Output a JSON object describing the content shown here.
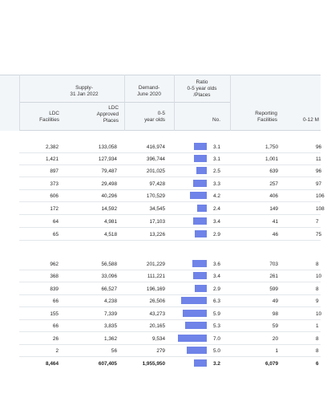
{
  "headers": {
    "supply": "Supply-\n31 Jan 2022",
    "demand": "Demand-\nJune 2020",
    "ratio": "Ratio\n0-5 year olds\n/Places",
    "ldc_facilities": "LDC\nFacilities",
    "ldc_places": "LDC\nApproved\nPlaces",
    "age_0_5": "0-5\nyear olds",
    "no": "No.",
    "reporting": "Reporting\nFacilities",
    "months": "0-12 M"
  },
  "accent_color": "#6f83e8",
  "rows": [
    {
      "facilities": "2,382",
      "places": "133,058",
      "age": "416,974",
      "ratio": "3.1",
      "ratio_value": 3.1,
      "reporting": "1,750",
      "months": "96"
    },
    {
      "facilities": "1,421",
      "places": "127,934",
      "age": "396,744",
      "ratio": "3.1",
      "ratio_value": 3.1,
      "reporting": "1,001",
      "months": "11"
    },
    {
      "facilities": "897",
      "places": "79,487",
      "age": "201,025",
      "ratio": "2.5",
      "ratio_value": 2.5,
      "reporting": "639",
      "months": "96"
    },
    {
      "facilities": "373",
      "places": "29,498",
      "age": "97,428",
      "ratio": "3.3",
      "ratio_value": 3.3,
      "reporting": "257",
      "months": "97"
    },
    {
      "facilities": "606",
      "places": "40,296",
      "age": "170,529",
      "ratio": "4.2",
      "ratio_value": 4.2,
      "reporting": "406",
      "months": "106"
    },
    {
      "facilities": "172",
      "places": "14,592",
      "age": "34,545",
      "ratio": "2.4",
      "ratio_value": 2.4,
      "reporting": "149",
      "months": "108"
    },
    {
      "facilities": "64",
      "places": "4,981",
      "age": "17,103",
      "ratio": "3.4",
      "ratio_value": 3.4,
      "reporting": "41",
      "months": "7"
    },
    {
      "facilities": "65",
      "places": "4,518",
      "age": "13,226",
      "ratio": "2.9",
      "ratio_value": 2.9,
      "reporting": "46",
      "months": "75"
    },
    {
      "facilities": "962",
      "places": "56,588",
      "age": "201,229",
      "ratio": "3.6",
      "ratio_value": 3.6,
      "reporting": "703",
      "months": "8"
    },
    {
      "facilities": "368",
      "places": "33,096",
      "age": "111,221",
      "ratio": "3.4",
      "ratio_value": 3.4,
      "reporting": "261",
      "months": "10"
    },
    {
      "facilities": "839",
      "places": "66,527",
      "age": "196,169",
      "ratio": "2.9",
      "ratio_value": 2.9,
      "reporting": "599",
      "months": "8"
    },
    {
      "facilities": "66",
      "places": "4,238",
      "age": "26,506",
      "ratio": "6.3",
      "ratio_value": 6.3,
      "reporting": "49",
      "months": "9"
    },
    {
      "facilities": "155",
      "places": "7,339",
      "age": "43,273",
      "ratio": "5.9",
      "ratio_value": 5.9,
      "reporting": "98",
      "months": "10"
    },
    {
      "facilities": "66",
      "places": "3,835",
      "age": "20,165",
      "ratio": "5.3",
      "ratio_value": 5.3,
      "reporting": "59",
      "months": "1"
    },
    {
      "facilities": "26",
      "places": "1,362",
      "age": "9,534",
      "ratio": "7.0",
      "ratio_value": 7.0,
      "reporting": "20",
      "months": "8"
    },
    {
      "facilities": "2",
      "places": "56",
      "age": "279",
      "ratio": "5.0",
      "ratio_value": 5.0,
      "reporting": "1",
      "months": "8"
    }
  ],
  "total": {
    "facilities": "8,464",
    "places": "607,405",
    "age": "1,955,950",
    "ratio": "3.2",
    "ratio_value": 3.2,
    "reporting": "6,079",
    "months": "6"
  }
}
